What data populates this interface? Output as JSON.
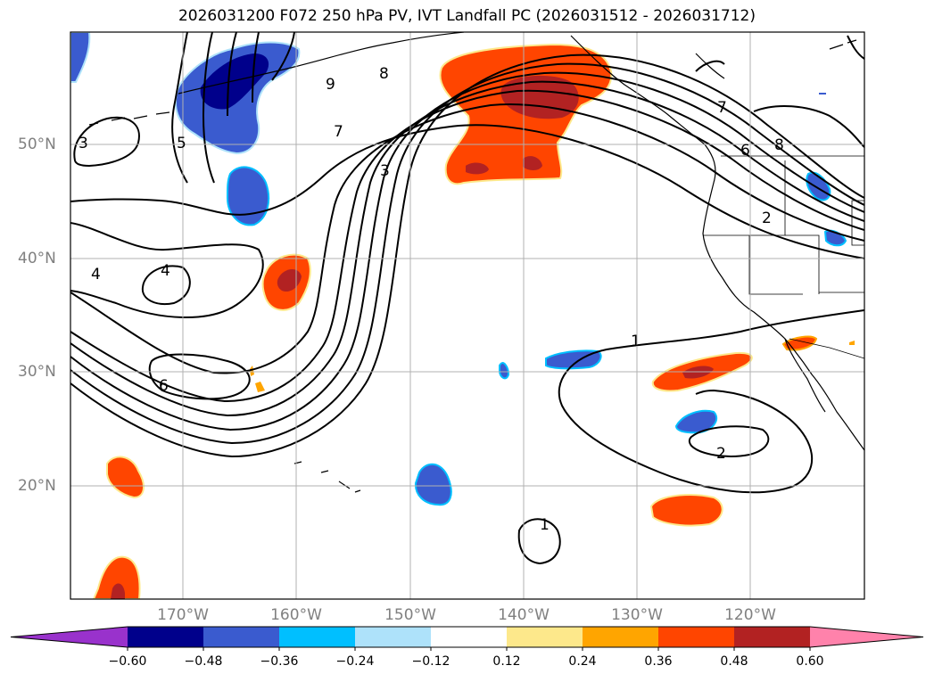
{
  "title": "2026031200 F072 250 hPa PV, IVT Landfall PC (2026031512 - 2026031712)",
  "lat_labels": [
    "50°N",
    "40°N",
    "30°N",
    "20°N"
  ],
  "lon_labels": [
    "170°W",
    "160°W",
    "150°W",
    "140°W",
    "130°W",
    "120°W"
  ],
  "colorbar": {
    "ticks": [
      "−0.60",
      "−0.48",
      "−0.36",
      "−0.24",
      "−0.12",
      "0.12",
      "0.24",
      "0.36",
      "0.48",
      "0.60"
    ],
    "colors": [
      "#9932cc",
      "#00008b",
      "#3a5bcf",
      "#00bfff",
      "#aee2fa",
      "#ffffff",
      "#fde88b",
      "#ffa500",
      "#ff4500",
      "#b22222",
      "#ff82ab"
    ]
  },
  "contour_labels": [
    "3",
    "5",
    "9",
    "8",
    "7",
    "3",
    "4",
    "4",
    "6",
    "1",
    "2",
    "1",
    "7",
    "6",
    "8",
    "2"
  ],
  "map": {
    "domain": "North Pacific / North America",
    "lat_range": [
      10,
      60
    ],
    "lon_range": [
      "180°",
      "110°W"
    ],
    "field_contours": "250 hPa PV",
    "field_shaded": "IVT Landfall PC"
  }
}
